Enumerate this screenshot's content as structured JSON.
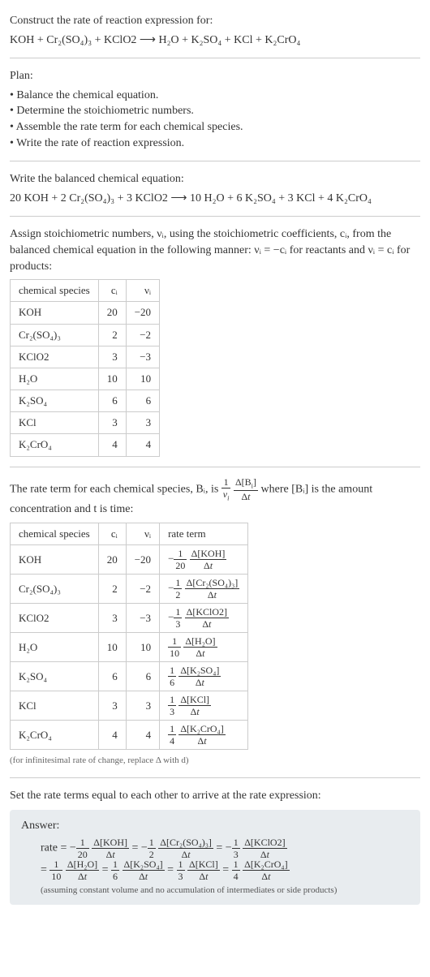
{
  "title": "Construct the rate of reaction expression for:",
  "equation_unbalanced": "KOH + Cr₂(SO₄)₃ + KClO2 ⟶ H₂O + K₂SO₄ + KCl + K₂CrO₄",
  "plan_heading": "Plan:",
  "plan_items": [
    "Balance the chemical equation.",
    "Determine the stoichiometric numbers.",
    "Assemble the rate term for each chemical species.",
    "Write the rate of reaction expression."
  ],
  "balanced_heading": "Write the balanced chemical equation:",
  "balanced_eq": "20 KOH + 2 Cr₂(SO₄)₃ + 3 KClO2 ⟶ 10 H₂O + 6 K₂SO₄ + 3 KCl + 4 K₂CrO₄",
  "assign_text1": "Assign stoichiometric numbers, νᵢ, using the stoichiometric coefficients, cᵢ, from the balanced chemical equation in the following manner: νᵢ = −cᵢ for reactants and νᵢ = cᵢ for products:",
  "table1": {
    "headers": [
      "chemical species",
      "cᵢ",
      "νᵢ"
    ],
    "rows": [
      [
        "KOH",
        "20",
        "−20"
      ],
      [
        "Cr₂(SO₄)₃",
        "2",
        "−2"
      ],
      [
        "KClO2",
        "3",
        "−3"
      ],
      [
        "H₂O",
        "10",
        "10"
      ],
      [
        "K₂SO₄",
        "6",
        "6"
      ],
      [
        "KCl",
        "3",
        "3"
      ],
      [
        "K₂CrO₄",
        "4",
        "4"
      ]
    ]
  },
  "rate_term_text1": "The rate term for each chemical species, Bᵢ, is",
  "rate_term_text2": "where [Bᵢ] is the amount concentration and t is time:",
  "table2": {
    "headers": [
      "chemical species",
      "cᵢ",
      "νᵢ",
      "rate term"
    ],
    "rows": [
      {
        "sp": "KOH",
        "c": "20",
        "v": "−20",
        "neg": "−",
        "fd": "20",
        "num": "Δ[KOH]"
      },
      {
        "sp": "Cr₂(SO₄)₃",
        "c": "2",
        "v": "−2",
        "neg": "−",
        "fd": "2",
        "num": "Δ[Cr₂(SO₄)₃]"
      },
      {
        "sp": "KClO2",
        "c": "3",
        "v": "−3",
        "neg": "−",
        "fd": "3",
        "num": "Δ[KClO2]"
      },
      {
        "sp": "H₂O",
        "c": "10",
        "v": "10",
        "neg": "",
        "fd": "10",
        "num": "Δ[H₂O]"
      },
      {
        "sp": "K₂SO₄",
        "c": "6",
        "v": "6",
        "neg": "",
        "fd": "6",
        "num": "Δ[K₂SO₄]"
      },
      {
        "sp": "KCl",
        "c": "3",
        "v": "3",
        "neg": "",
        "fd": "3",
        "num": "Δ[KCl]"
      },
      {
        "sp": "K₂CrO₄",
        "c": "4",
        "v": "4",
        "neg": "",
        "fd": "4",
        "num": "Δ[K₂CrO₄]"
      }
    ]
  },
  "footnote": "(for infinitesimal rate of change, replace Δ with d)",
  "set_equal": "Set the rate terms equal to each other to arrive at the rate expression:",
  "answer_label": "Answer:",
  "answer_terms": [
    {
      "neg": "−",
      "d": "20",
      "n": "Δ[KOH]"
    },
    {
      "neg": "−",
      "d": "2",
      "n": "Δ[Cr₂(SO₄)₃]"
    },
    {
      "neg": "−",
      "d": "3",
      "n": "Δ[KClO2]"
    },
    {
      "neg": "",
      "d": "10",
      "n": "Δ[H₂O]"
    },
    {
      "neg": "",
      "d": "6",
      "n": "Δ[K₂SO₄]"
    },
    {
      "neg": "",
      "d": "3",
      "n": "Δ[KCl]"
    },
    {
      "neg": "",
      "d": "4",
      "n": "Δ[K₂CrO₄]"
    }
  ],
  "answer_note": "(assuming constant volume and no accumulation of intermediates or side products)"
}
